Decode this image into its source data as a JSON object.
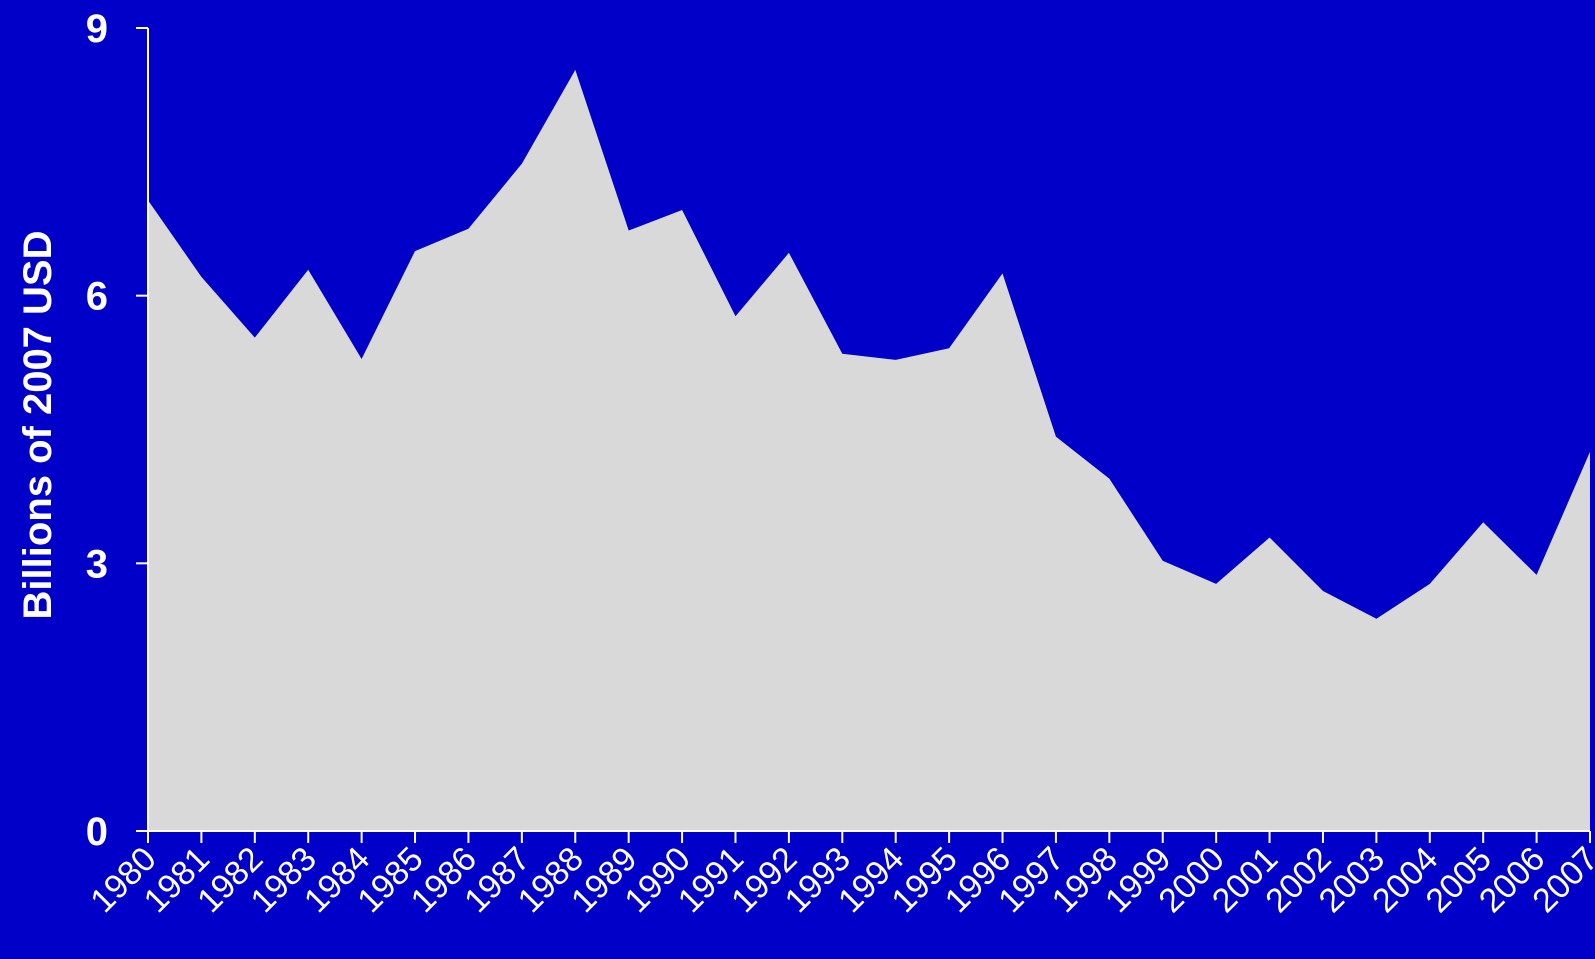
{
  "chart_data": {
    "type": "area",
    "title": "",
    "xlabel": "",
    "ylabel": "Billions of 2007 USD",
    "x": [
      "1980",
      "1981",
      "1982",
      "1983",
      "1984",
      "1985",
      "1986",
      "1987",
      "1988",
      "1989",
      "1990",
      "1991",
      "1992",
      "1993",
      "1994",
      "1995",
      "1996",
      "1997",
      "1998",
      "1999",
      "2000",
      "2001",
      "2002",
      "2003",
      "2004",
      "2005",
      "2006",
      "2007"
    ],
    "values": [
      7.07,
      6.21,
      5.53,
      6.29,
      5.29,
      6.5,
      6.75,
      7.48,
      8.53,
      6.73,
      6.96,
      5.77,
      6.48,
      5.35,
      5.28,
      5.41,
      6.25,
      4.42,
      3.95,
      3.03,
      2.77,
      3.29,
      2.69,
      2.38,
      2.77,
      3.46,
      2.87,
      4.25
    ],
    "ylim": [
      0,
      9
    ],
    "yticks": [
      "0",
      "3",
      "6",
      "9"
    ],
    "grid": false,
    "legend": "none",
    "colors": {
      "background": "#0000C8",
      "area_fill": "#D9D9D9",
      "text": "#FFFFFF",
      "axis": "#FFFFFF"
    }
  }
}
